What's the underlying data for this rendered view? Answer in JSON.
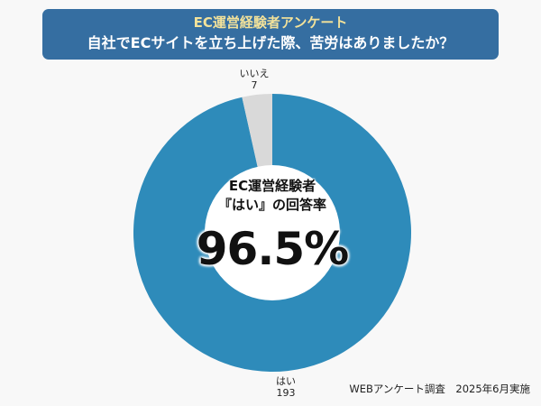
{
  "header": {
    "title": "EC運営経験者アンケート",
    "subtitle": "自社でECサイトを立ち上げた際、苦労はありましたか？"
  },
  "center": {
    "line1": "EC運営経験者",
    "line2": "『はい』の回答率",
    "percentage": "96.5%"
  },
  "labels": {
    "no": {
      "name": "いいえ",
      "value": "7"
    },
    "yes": {
      "name": "はい",
      "value": "193"
    }
  },
  "footer": {
    "source": "WEBアンケート調査　2025年6月実施"
  },
  "colors": {
    "banner": "#356ea1",
    "title": "#f3e29a",
    "yes": "#2e8bba",
    "no": "#d9d9d9",
    "hole": "#ffffff"
  },
  "chart_data": {
    "type": "pie",
    "title": "EC運営経験者アンケート",
    "subtitle": "自社でECサイトを立ち上げた際、苦労はありましたか？",
    "categories": [
      "はい",
      "いいえ"
    ],
    "values": [
      193,
      7
    ],
    "percentages": [
      96.5,
      3.5
    ],
    "donut": true,
    "center_annotation": "EC運営経験者『はい』の回答率 96.5%",
    "legend": "none",
    "source": "WEBアンケート調査　2025年6月実施"
  }
}
